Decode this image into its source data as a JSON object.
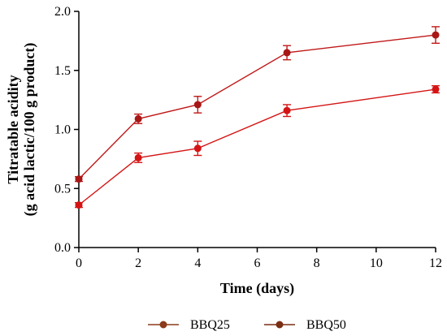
{
  "chart_data": {
    "type": "line",
    "xlabel": "Time (days)",
    "ylabel": [
      "Titratable acidity",
      "(g acid lactic/100 g product)"
    ],
    "xlim": [
      0,
      12
    ],
    "ylim": [
      0.0,
      2.0
    ],
    "xticks": [
      0,
      2,
      4,
      6,
      8,
      10,
      12
    ],
    "yticks": [
      0.0,
      0.5,
      1.0,
      1.5,
      2.0
    ],
    "ytick_labels": [
      "0.0",
      "0.5",
      "1.0",
      "1.5",
      "2.0"
    ],
    "grid": false,
    "legend_placement": "bottom",
    "series": [
      {
        "name": "BBQ25",
        "color": "#d41414",
        "marker_color": "#d41414",
        "x": [
          0,
          2,
          4,
          7,
          12
        ],
        "y": [
          0.36,
          0.76,
          0.84,
          1.16,
          1.34
        ],
        "err": [
          0.02,
          0.04,
          0.06,
          0.05,
          0.03
        ]
      },
      {
        "name": "BBQ50",
        "color": "#c01818",
        "marker_color": "#a81616",
        "x": [
          0,
          2,
          4,
          7,
          12
        ],
        "y": [
          0.58,
          1.09,
          1.21,
          1.65,
          1.8
        ],
        "err": [
          0.02,
          0.04,
          0.07,
          0.06,
          0.07
        ]
      }
    ],
    "legend_colors": [
      "#8b3a1a",
      "#7a2e14"
    ]
  }
}
